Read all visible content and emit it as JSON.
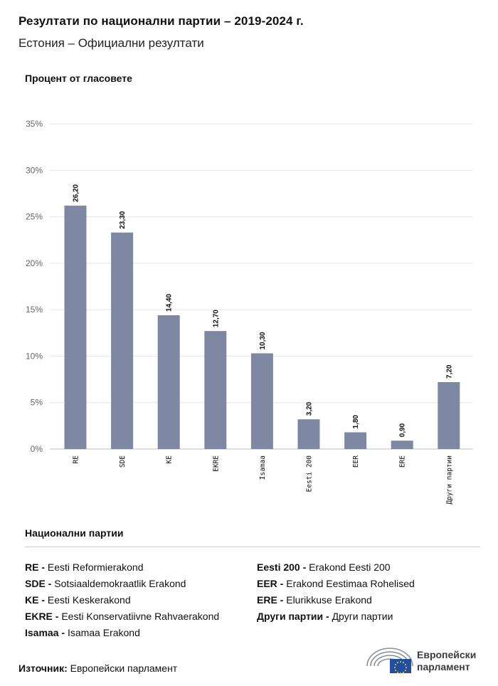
{
  "header": {
    "title": "Резултати по национални партии – 2019-2024 г.",
    "subtitle": "Естония – Официални резултати"
  },
  "chart_data": {
    "type": "bar",
    "ylabel": "Процент от гласовете",
    "ylim": [
      0,
      35
    ],
    "yticks": [
      "0%",
      "5%",
      "10%",
      "15%",
      "20%",
      "25%",
      "30%",
      "35%"
    ],
    "categories": [
      "RE",
      "SDE",
      "KE",
      "EKRE",
      "Isamaa",
      "Eesti 200",
      "EER",
      "ERE",
      "Други партии"
    ],
    "values": [
      26.2,
      23.3,
      14.4,
      12.7,
      10.3,
      3.2,
      1.8,
      0.9,
      7.2
    ],
    "value_labels": [
      "26,20",
      "23,30",
      "14,40",
      "12,70",
      "10,30",
      "3,20",
      "1,80",
      "0,90",
      "7,20"
    ],
    "bar_color": "#7f88a3",
    "grid": true
  },
  "legend": {
    "title": "Национални партии",
    "col1": [
      {
        "abbr": "RE -",
        "name": "Eesti Reformierakond"
      },
      {
        "abbr": "SDE -",
        "name": "Sotsiaaldemokraatlik Erakond"
      },
      {
        "abbr": "KE -",
        "name": "Eesti Keskerakond"
      },
      {
        "abbr": "EKRE -",
        "name": "Eesti Konservatiivne Rahvaerakond"
      },
      {
        "abbr": "Isamaa -",
        "name": "Isamaa Erakond"
      }
    ],
    "col2": [
      {
        "abbr": "Eesti 200 -",
        "name": "Erakond Eesti 200"
      },
      {
        "abbr": "EER -",
        "name": "Erakond Eestimaa Rohelised"
      },
      {
        "abbr": "ERE -",
        "name": "Elurikkuse Erakond"
      },
      {
        "abbr": "Други партии -",
        "name": "Други партии"
      }
    ]
  },
  "footer": {
    "source_label": "Източник:",
    "source_text": "Европейски парламент",
    "logo_line1": "Европейски",
    "logo_line2": "парламент"
  }
}
